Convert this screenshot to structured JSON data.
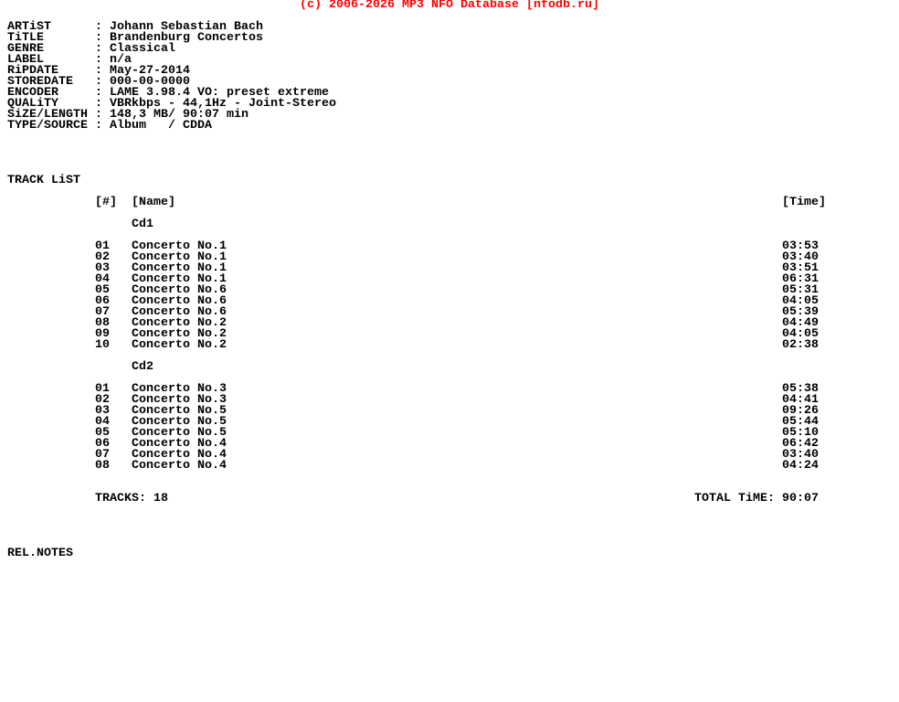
{
  "copyright": "(c) 2006-2026 MP3 NFO Database [nfodb.ru]",
  "colors": {
    "copyright": "#ff0000",
    "text": "#000000",
    "background": "#ffffff"
  },
  "info": [
    {
      "label": "ARTiST",
      "value": "Johann Sebastian Bach"
    },
    {
      "label": "TiTLE",
      "value": "Brandenburg Concertos"
    },
    {
      "label": "GENRE",
      "value": "Classical"
    },
    {
      "label": "LABEL",
      "value": "n/a"
    },
    {
      "label": "RiPDATE",
      "value": "May-27-2014"
    },
    {
      "label": "STOREDATE",
      "value": "000-00-0000"
    },
    {
      "label": "ENCODER",
      "value": "LAME 3.98.4 VO: preset extreme"
    },
    {
      "label": "QUALiTY",
      "value": "VBRkbps - 44,1Hz - Joint-Stereo"
    },
    {
      "label": "SiZE/LENGTH",
      "value": "148,3 MB/ 90:07 min"
    },
    {
      "label": "TYPE/SOURCE",
      "value": "Album   / CDDA"
    }
  ],
  "separator": ":",
  "tracklist": {
    "title": "TRACK LiST",
    "headers": {
      "num": "[#]",
      "name": "[Name]",
      "time": "[Time]"
    },
    "discs": [
      {
        "name": "Cd1",
        "tracks": [
          {
            "num": "01",
            "name": "Concerto No.1",
            "time": "03:53"
          },
          {
            "num": "02",
            "name": "Concerto No.1",
            "time": "03:40"
          },
          {
            "num": "03",
            "name": "Concerto No.1",
            "time": "03:51"
          },
          {
            "num": "04",
            "name": "Concerto No.1",
            "time": "06:31"
          },
          {
            "num": "05",
            "name": "Concerto No.6",
            "time": "05:31"
          },
          {
            "num": "06",
            "name": "Concerto No.6",
            "time": "04:05"
          },
          {
            "num": "07",
            "name": "Concerto No.6",
            "time": "05:39"
          },
          {
            "num": "08",
            "name": "Concerto No.2",
            "time": "04:49"
          },
          {
            "num": "09",
            "name": "Concerto No.2",
            "time": "04:05"
          },
          {
            "num": "10",
            "name": "Concerto No.2",
            "time": "02:38"
          }
        ]
      },
      {
        "name": "Cd2",
        "tracks": [
          {
            "num": "01",
            "name": "Concerto No.3",
            "time": "05:38"
          },
          {
            "num": "02",
            "name": "Concerto No.3",
            "time": "04:41"
          },
          {
            "num": "03",
            "name": "Concerto No.5",
            "time": "09:26"
          },
          {
            "num": "04",
            "name": "Concerto No.5",
            "time": "05:44"
          },
          {
            "num": "05",
            "name": "Concerto No.5",
            "time": "05:10"
          },
          {
            "num": "06",
            "name": "Concerto No.4",
            "time": "06:42"
          },
          {
            "num": "07",
            "name": "Concerto No.4",
            "time": "03:40"
          },
          {
            "num": "08",
            "name": "Concerto No.4",
            "time": "04:24"
          }
        ]
      }
    ],
    "tracks_total": "TRACKS: 18",
    "total_time": "TOTAL TiME: 90:07"
  },
  "rel_notes": "REL.NOTES"
}
